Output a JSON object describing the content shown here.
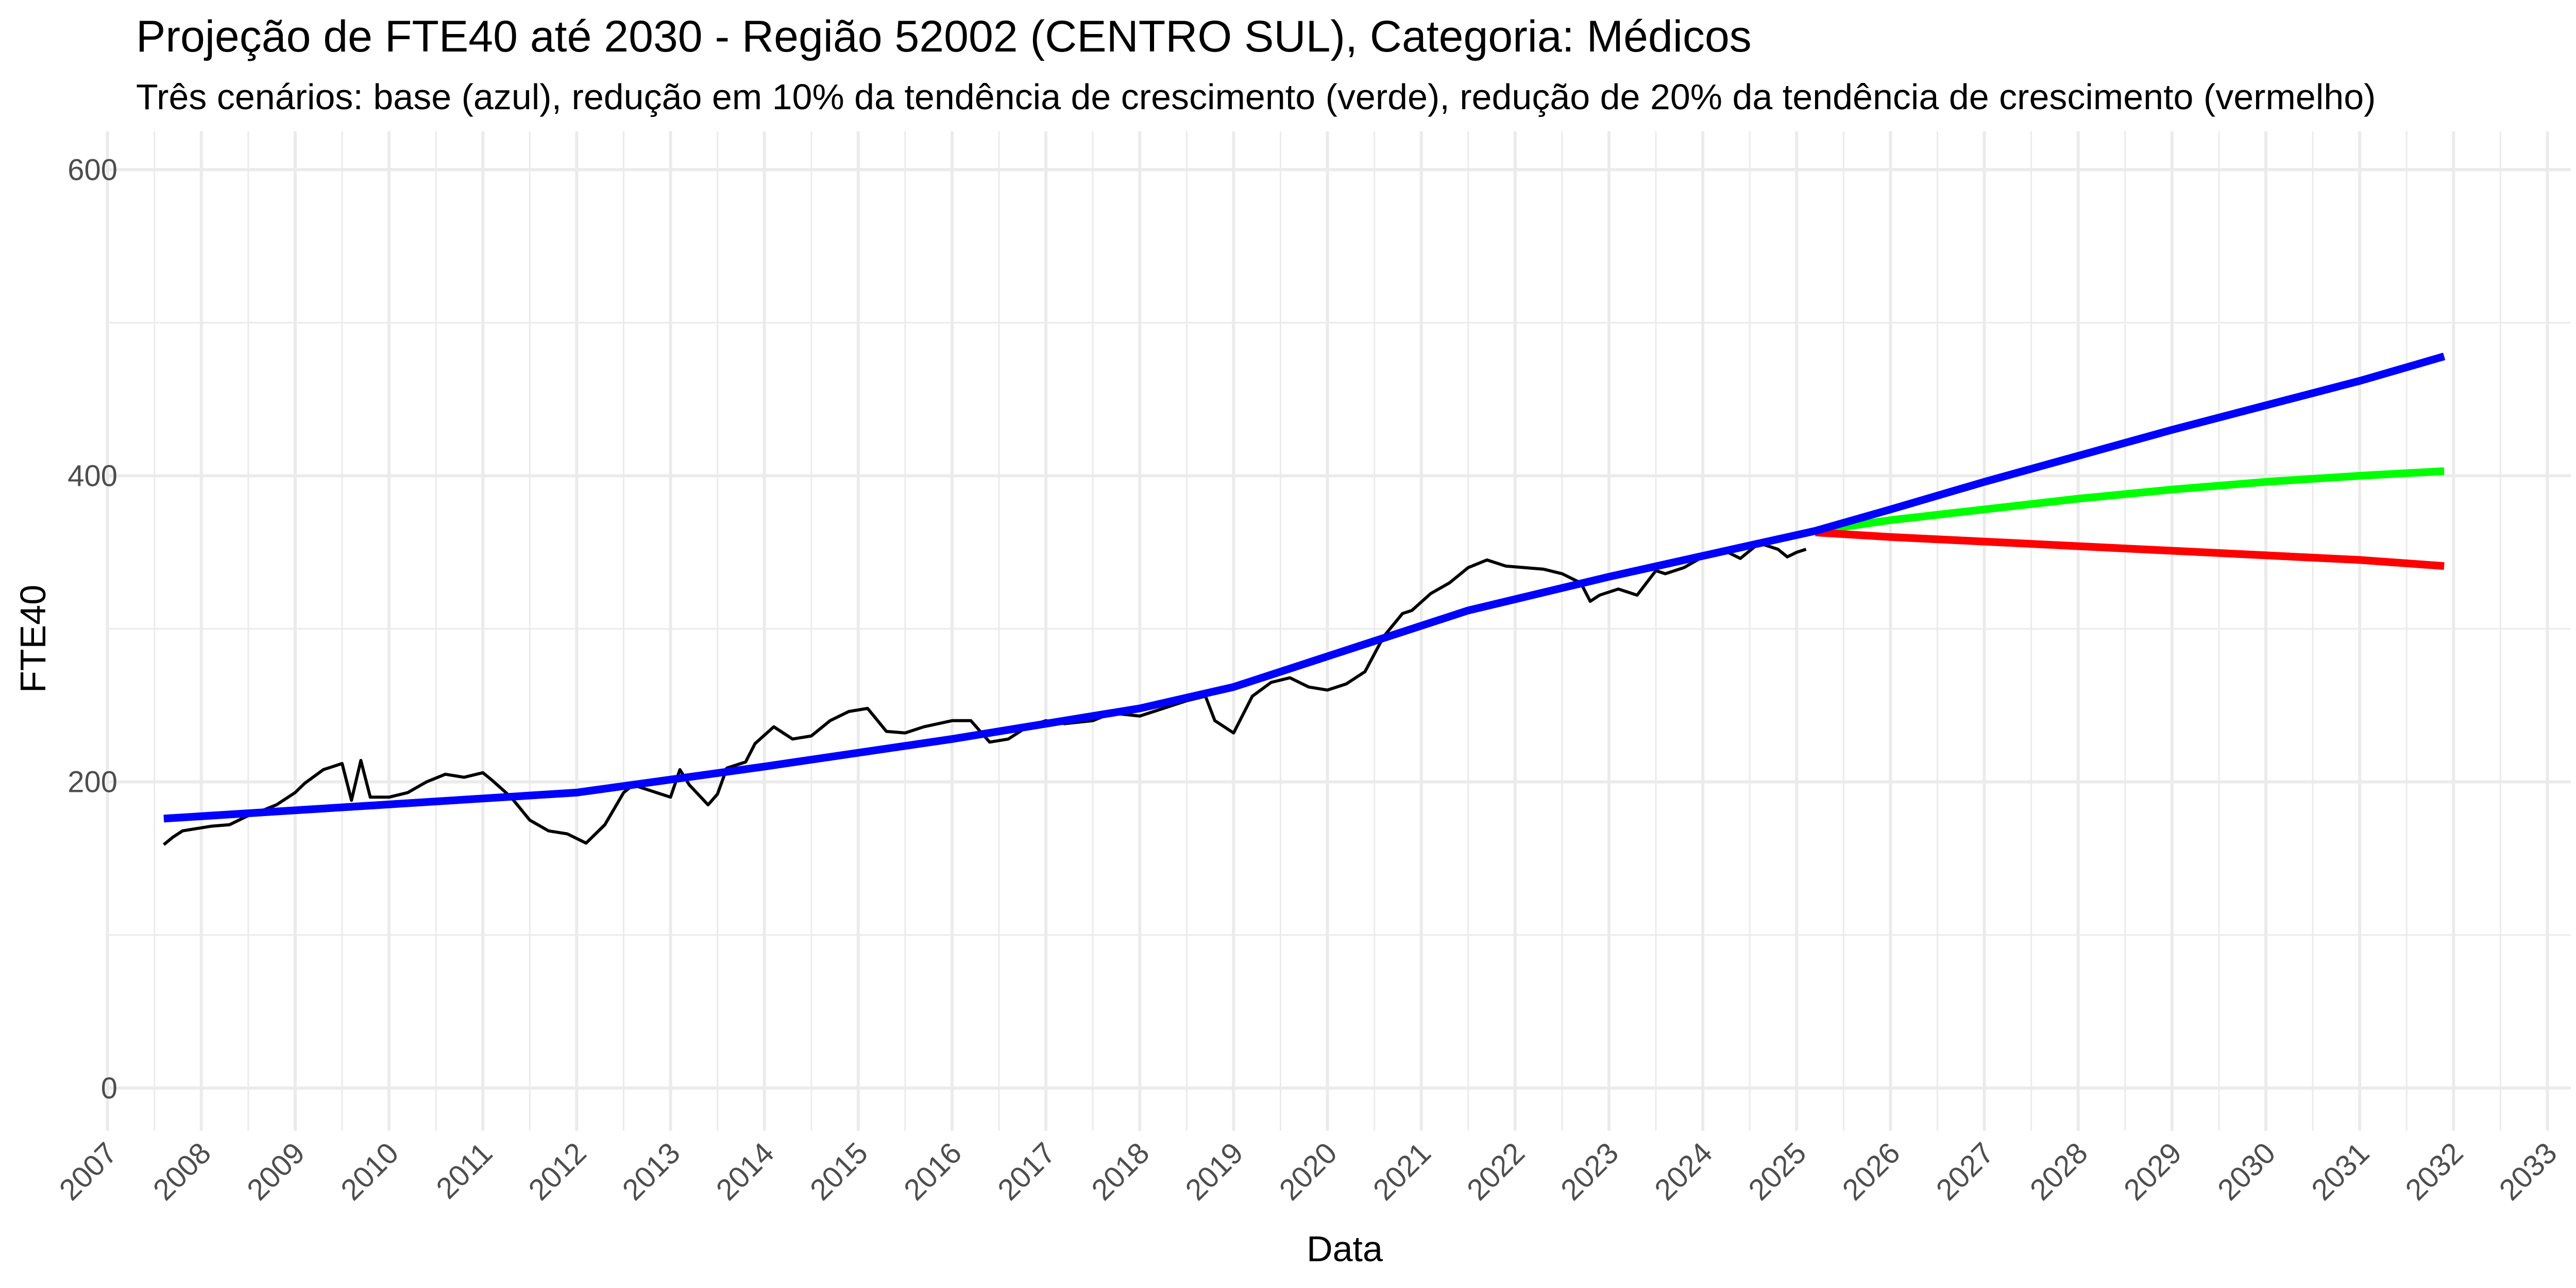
{
  "chart_data": {
    "type": "line",
    "title": "Projeção de FTE40 até 2030 - Região 52002 (CENTRO SUL), Categoria: Médicos",
    "subtitle": "Três cenários: base (azul), redução em 10% da tendência de crescimento (verde), redução de 20% da tendência de crescimento (vermelho)",
    "xlabel": "Data",
    "ylabel": "FTE40",
    "xlim": [
      2006.98,
      2033.25
    ],
    "ylim": [
      -28,
      625
    ],
    "y_ticks": [
      "0",
      "200",
      "400",
      "600"
    ],
    "y_tick_values": [
      0,
      200,
      400,
      600
    ],
    "x_ticks": [
      "2007",
      "2008",
      "2009",
      "2010",
      "2011",
      "2012",
      "2013",
      "2014",
      "2015",
      "2016",
      "2017",
      "2018",
      "2019",
      "2020",
      "2021",
      "2022",
      "2023",
      "2024",
      "2025",
      "2026",
      "2027",
      "2028",
      "2029",
      "2030",
      "2031",
      "2032",
      "2033"
    ],
    "grid": true,
    "legend": "none",
    "colors": {
      "observed": "#000000",
      "base": "#0000ff",
      "green_scenario": "#00ff00",
      "red_scenario": "#ff0000",
      "grid": "#ebebeb"
    },
    "series": [
      {
        "color": "#000000",
        "x": [
          2007.6,
          2007.7,
          2007.8,
          2008.0,
          2008.1,
          2008.3,
          2008.5,
          2008.6,
          2008.8,
          2009.0,
          2009.1,
          2009.3,
          2009.5,
          2009.6,
          2009.7,
          2009.8,
          2010.0,
          2010.2,
          2010.4,
          2010.6,
          2010.8,
          2011.0,
          2011.1,
          2011.3,
          2011.5,
          2011.7,
          2011.9,
          2012.1,
          2012.3,
          2012.5,
          2012.6,
          2013.0,
          2013.1,
          2013.2,
          2013.4,
          2013.5,
          2013.6,
          2013.8,
          2013.9,
          2014.1,
          2014.3,
          2014.5,
          2014.7,
          2014.9,
          2015.1,
          2015.3,
          2015.5,
          2015.7,
          2016.0,
          2016.2,
          2016.4,
          2016.6,
          2016.8,
          2017.0,
          2017.2,
          2017.5,
          2017.7,
          2018.0,
          2018.2,
          2018.5,
          2018.7,
          2018.8,
          2019.0,
          2019.2,
          2019.4,
          2019.6,
          2019.8,
          2020.0,
          2020.2,
          2020.4,
          2020.6,
          2020.8,
          2020.9,
          2021.1,
          2021.3,
          2021.5,
          2021.7,
          2021.9,
          2022.1,
          2022.3,
          2022.5,
          2022.7,
          2022.8,
          2022.9,
          2023.1,
          2023.3,
          2023.5,
          2023.6,
          2023.8,
          2024.0,
          2024.2,
          2024.4,
          2024.6,
          2024.8,
          2024.9,
          2025.0,
          2025.1
        ],
        "values": [
          159,
          164,
          168,
          170,
          171,
          172,
          178,
          180,
          185,
          193,
          199,
          208,
          212,
          188,
          214,
          190,
          190,
          193,
          200,
          205,
          203,
          206,
          201,
          190,
          175,
          168,
          166,
          160,
          172,
          193,
          198,
          190,
          208,
          198,
          185,
          192,
          209,
          213,
          225,
          236,
          228,
          230,
          240,
          246,
          248,
          233,
          232,
          236,
          240,
          240,
          226,
          228,
          236,
          240,
          238,
          240,
          245,
          243,
          247,
          253,
          256,
          240,
          232,
          256,
          265,
          268,
          262,
          260,
          264,
          272,
          295,
          310,
          312,
          323,
          330,
          340,
          345,
          341,
          340,
          339,
          336,
          330,
          318,
          322,
          326,
          322,
          338,
          336,
          340,
          347,
          352,
          346,
          356,
          352,
          347,
          350,
          352
        ]
      },
      {
        "color": "#0000ff",
        "x": [
          2007.6,
          2012.0,
          2014.0,
          2016.0,
          2018.0,
          2019.0,
          2020.0,
          2021.5,
          2023.0,
          2025.2,
          2026.0,
          2027.0,
          2028.0,
          2029.0,
          2030.0,
          2031.0,
          2031.9
        ],
        "values": [
          176,
          193,
          210,
          228,
          248,
          262,
          282,
          312,
          334,
          364,
          378,
          396,
          413,
          430,
          446,
          462,
          478
        ]
      },
      {
        "color": "#00ff00",
        "x": [
          2025.2,
          2026.0,
          2027.0,
          2028.0,
          2029.0,
          2030.0,
          2031.0,
          2031.9
        ],
        "values": [
          364,
          371,
          378,
          385,
          391,
          396,
          400,
          403
        ]
      },
      {
        "color": "#ff0000",
        "x": [
          2025.2,
          2026.0,
          2027.0,
          2028.0,
          2029.0,
          2030.0,
          2031.0,
          2031.9
        ],
        "values": [
          363,
          360,
          357,
          354,
          351,
          348,
          345,
          341
        ]
      }
    ]
  }
}
